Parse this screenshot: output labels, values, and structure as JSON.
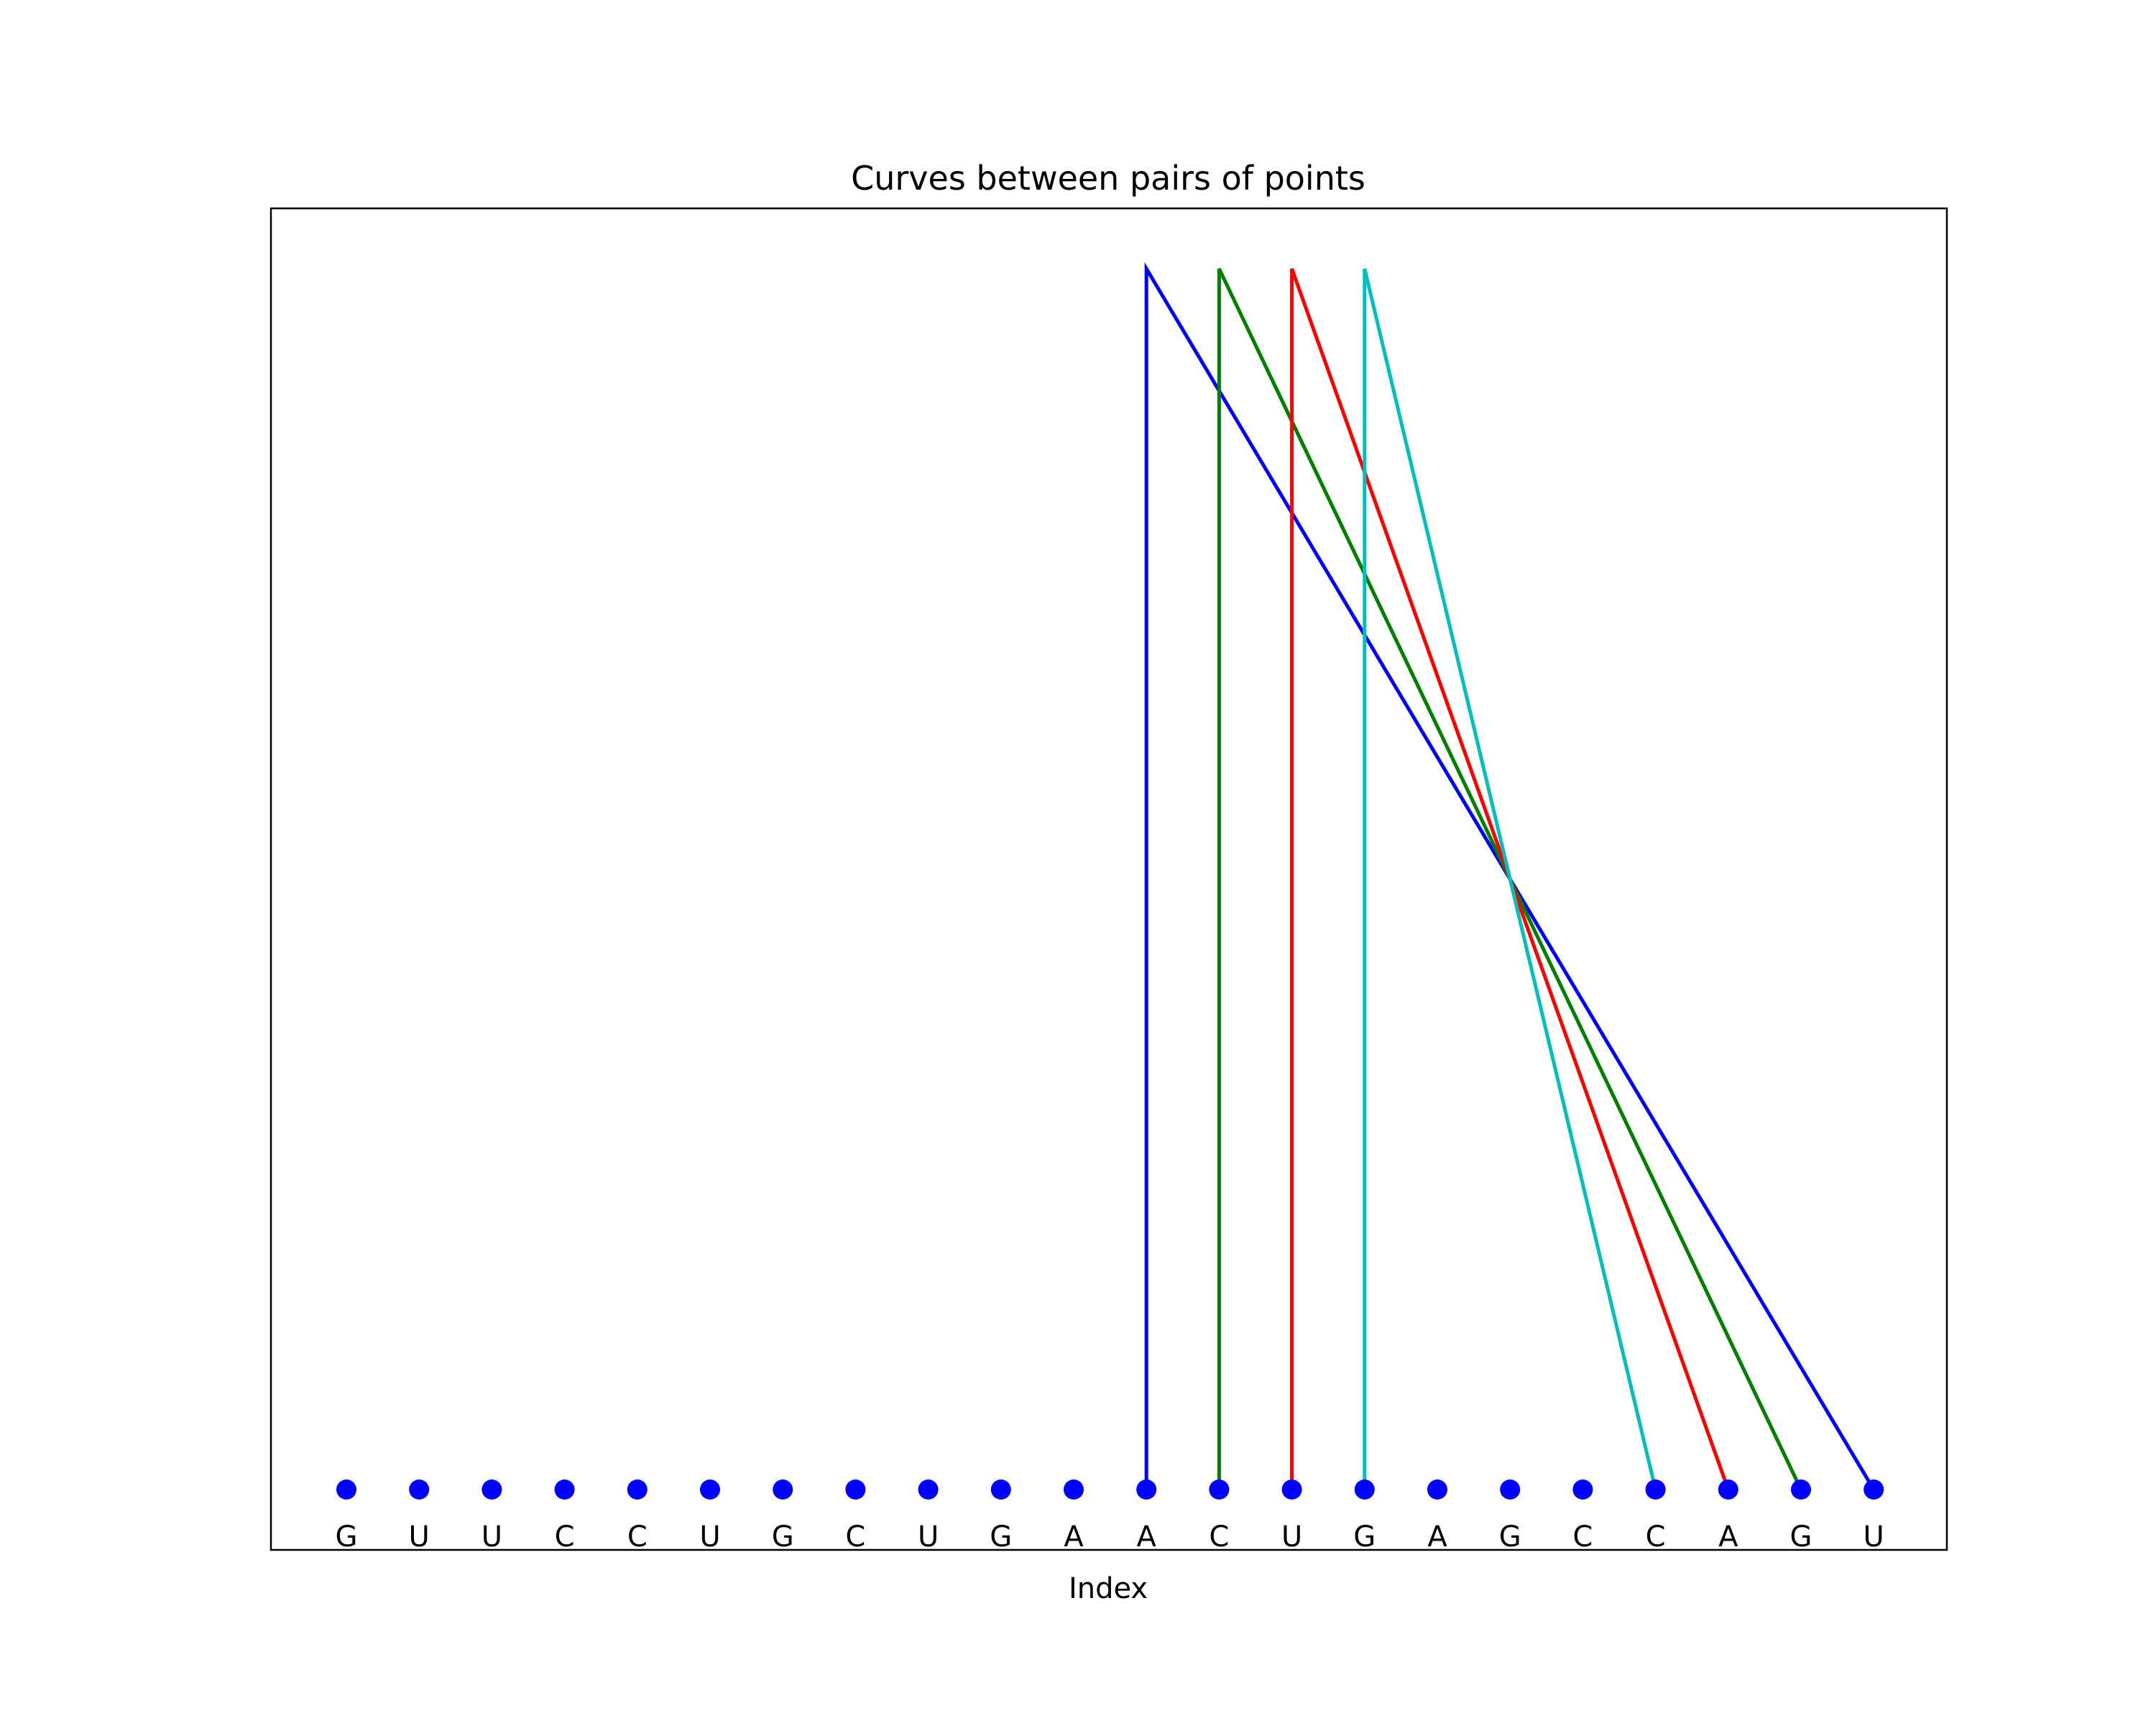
{
  "chart_data": {
    "type": "line",
    "title": "Curves between pairs of points",
    "xlabel": "Index",
    "ylabel": "",
    "sequence": [
      "G",
      "U",
      "U",
      "C",
      "C",
      "U",
      "G",
      "C",
      "U",
      "G",
      "A",
      "A",
      "C",
      "U",
      "G",
      "A",
      "G",
      "C",
      "C",
      "A",
      "G",
      "U"
    ],
    "point_color": "#0000ff",
    "pairs": [
      {
        "from": 11,
        "to": 21,
        "color": "#0000ff"
      },
      {
        "from": 12,
        "to": 20,
        "color": "#008000"
      },
      {
        "from": 13,
        "to": 19,
        "color": "#ff0000"
      },
      {
        "from": 14,
        "to": 18,
        "color": "#00bfbf"
      }
    ],
    "grid": false,
    "legend": "none"
  }
}
